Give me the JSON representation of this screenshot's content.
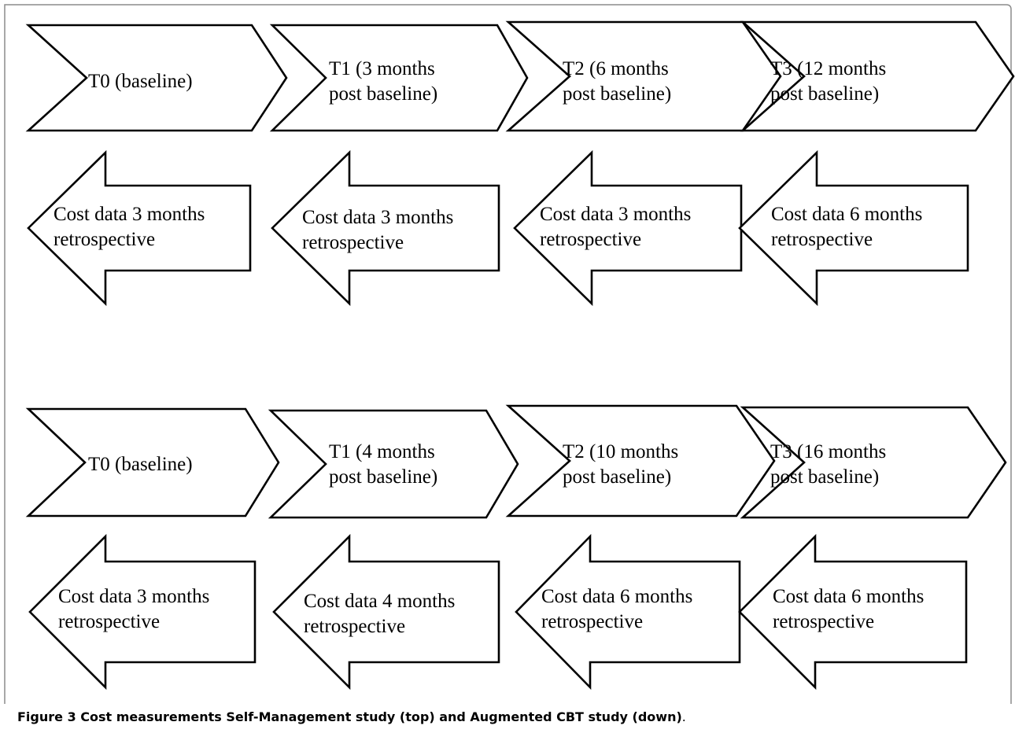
{
  "panels": [
    {
      "timepoints": [
        {
          "lines": [
            "T0 (baseline)"
          ]
        },
        {
          "lines": [
            "T1 (3 months",
            "post baseline)"
          ]
        },
        {
          "lines": [
            "T2 (6 months",
            "post baseline)"
          ]
        },
        {
          "lines": [
            "T3 (12 months",
            "post baseline)"
          ]
        }
      ],
      "cost_windows": [
        {
          "lines": [
            "Cost data 3 months",
            "retrospective"
          ]
        },
        {
          "lines": [
            "Cost data 3 months",
            "retrospective"
          ]
        },
        {
          "lines": [
            "Cost data 3 months",
            "retrospective"
          ]
        },
        {
          "lines": [
            "Cost data 6 months",
            "retrospective"
          ]
        }
      ]
    },
    {
      "timepoints": [
        {
          "lines": [
            "T0 (baseline)"
          ]
        },
        {
          "lines": [
            "T1 (4 months",
            "post baseline)"
          ]
        },
        {
          "lines": [
            "T2 (10 months",
            "post baseline)"
          ]
        },
        {
          "lines": [
            "T3 (16 months",
            "post baseline)"
          ]
        }
      ],
      "cost_windows": [
        {
          "lines": [
            "Cost data 3 months",
            "retrospective"
          ]
        },
        {
          "lines": [
            "Cost data 4 months",
            "retrospective"
          ]
        },
        {
          "lines": [
            "Cost data 6 months",
            "retrospective"
          ]
        },
        {
          "lines": [
            "Cost data 6 months",
            "retrospective"
          ]
        }
      ]
    }
  ],
  "caption": {
    "prefix": "Figure 3",
    "text": " Cost measurements Self-Management study (top) and Augmented CBT study (down)",
    "suffix": "."
  }
}
